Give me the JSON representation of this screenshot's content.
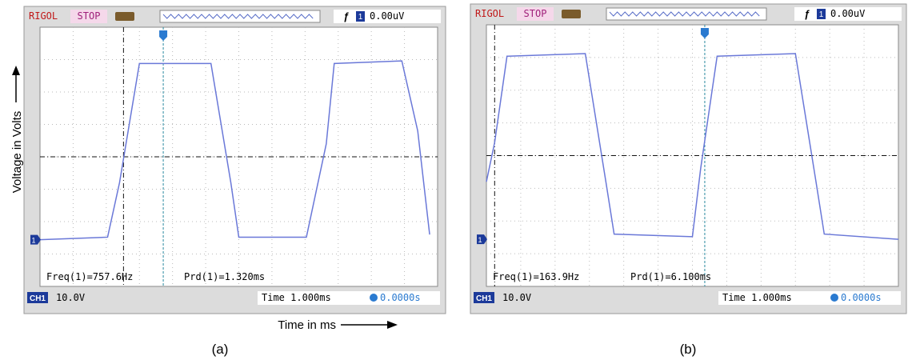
{
  "axes": {
    "y_label": "Voltage in Volts",
    "x_label": "Time in ms"
  },
  "panels": [
    {
      "caption": "(a)",
      "brand": "RIGOL",
      "status": "STOP",
      "trigger_source": "1",
      "trigger_level": "0.00uV",
      "channel_marker": "1",
      "freq": "Freq(1)=757.6Hz",
      "period": "Prd(1)=1.320ms",
      "channel": "CH1",
      "volts_div": "10.0V",
      "timebase": "Time 1.000ms",
      "offset": "0.0000s"
    },
    {
      "caption": "(b)",
      "brand": "RIGOL",
      "status": "STOP",
      "trigger_source": "1",
      "trigger_level": "0.00uV",
      "channel_marker": "1",
      "freq": "Freq(1)=163.9Hz",
      "period": "Prd(1)=6.100ms",
      "channel": "CH1",
      "volts_div": "10.0V",
      "timebase": "Time 1.000ms",
      "offset": "0.0000s"
    }
  ]
}
